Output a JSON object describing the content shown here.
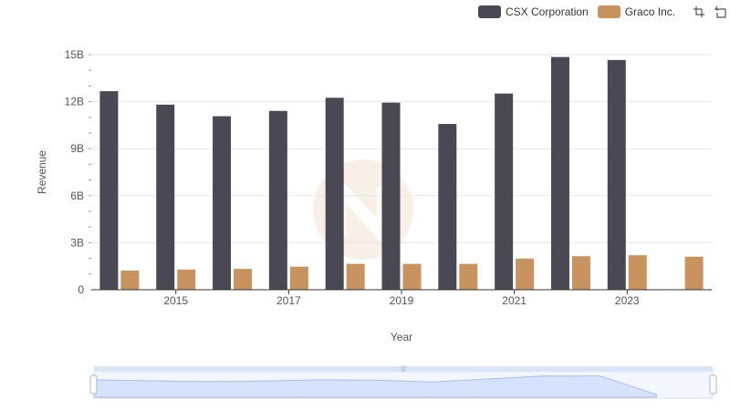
{
  "chart_data": {
    "type": "bar",
    "title": "",
    "xlabel": "Year",
    "ylabel": "Revenue",
    "categories": [
      "2014",
      "2015",
      "2016",
      "2017",
      "2018",
      "2019",
      "2020",
      "2021",
      "2022",
      "2023",
      "2024"
    ],
    "x_tick_labels": [
      "2015",
      "2017",
      "2019",
      "2021",
      "2023"
    ],
    "y_tick_labels": [
      "0",
      "3B",
      "6B",
      "9B",
      "12B",
      "15B"
    ],
    "ylim": [
      0,
      15000000000
    ],
    "grid": true,
    "legend_position": "top-right",
    "series": [
      {
        "name": "CSX Corporation",
        "color": "#4a4953",
        "values": [
          12670000000,
          11810000000,
          11070000000,
          11410000000,
          12250000000,
          11940000000,
          10580000000,
          12520000000,
          14850000000,
          14660000000,
          null
        ]
      },
      {
        "name": "Graco Inc.",
        "color": "#c9935f",
        "values": [
          1220000000,
          1290000000,
          1330000000,
          1470000000,
          1650000000,
          1650000000,
          1650000000,
          1990000000,
          2140000000,
          2200000000,
          2110000000
        ]
      }
    ]
  },
  "toolbox": {
    "zoom_icon": "zoom-select-icon",
    "reset_icon": "zoom-reset-icon"
  }
}
